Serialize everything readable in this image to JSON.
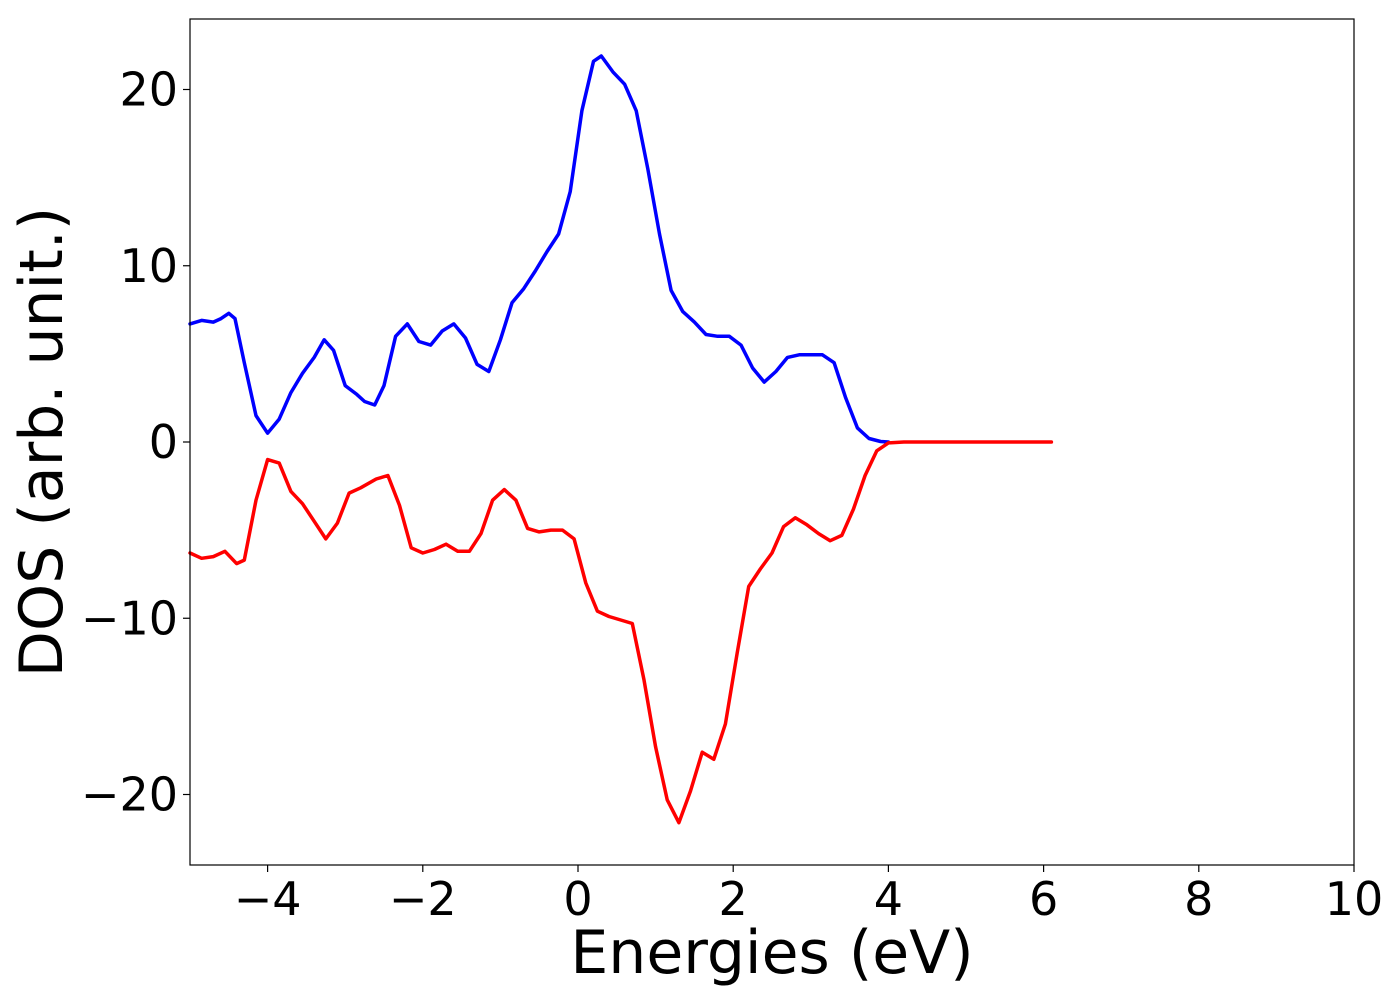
{
  "chart_data": {
    "type": "line",
    "title": "",
    "xlabel": "Energies (eV)",
    "ylabel": "DOS (arb. unit.)",
    "xlim": [
      -5,
      10
    ],
    "ylim": [
      -24,
      24
    ],
    "x_ticks": [
      -4,
      -2,
      0,
      2,
      4,
      6,
      8,
      10
    ],
    "x_tick_labels": [
      "−4",
      "−2",
      "0",
      "2",
      "4",
      "6",
      "8",
      "10"
    ],
    "y_ticks": [
      -20,
      -10,
      0,
      10,
      20
    ],
    "y_tick_labels": [
      "−20",
      "−10",
      "0",
      "10",
      "20"
    ],
    "grid": false,
    "legend": "none",
    "series": [
      {
        "color": "#0000ff",
        "points": [
          [
            -5.0,
            6.7
          ],
          [
            -4.85,
            6.9
          ],
          [
            -4.7,
            6.8
          ],
          [
            -4.6,
            7.0
          ],
          [
            -4.5,
            7.3
          ],
          [
            -4.42,
            7.0
          ],
          [
            -4.3,
            4.5
          ],
          [
            -4.15,
            1.5
          ],
          [
            -4.0,
            0.5
          ],
          [
            -3.85,
            1.3
          ],
          [
            -3.7,
            2.8
          ],
          [
            -3.55,
            3.9
          ],
          [
            -3.4,
            4.8
          ],
          [
            -3.27,
            5.8
          ],
          [
            -3.15,
            5.2
          ],
          [
            -3.0,
            3.2
          ],
          [
            -2.85,
            2.7
          ],
          [
            -2.75,
            2.3
          ],
          [
            -2.62,
            2.1
          ],
          [
            -2.5,
            3.2
          ],
          [
            -2.35,
            6.0
          ],
          [
            -2.2,
            6.7
          ],
          [
            -2.05,
            5.7
          ],
          [
            -1.9,
            5.5
          ],
          [
            -1.75,
            6.3
          ],
          [
            -1.6,
            6.7
          ],
          [
            -1.45,
            5.9
          ],
          [
            -1.3,
            4.4
          ],
          [
            -1.15,
            4.0
          ],
          [
            -1.0,
            5.8
          ],
          [
            -0.85,
            7.9
          ],
          [
            -0.7,
            8.7
          ],
          [
            -0.55,
            9.7
          ],
          [
            -0.4,
            10.8
          ],
          [
            -0.25,
            11.8
          ],
          [
            -0.1,
            14.2
          ],
          [
            0.05,
            18.8
          ],
          [
            0.2,
            21.6
          ],
          [
            0.3,
            21.9
          ],
          [
            0.45,
            21.0
          ],
          [
            0.6,
            20.3
          ],
          [
            0.75,
            18.8
          ],
          [
            0.9,
            15.5
          ],
          [
            1.05,
            11.8
          ],
          [
            1.2,
            8.6
          ],
          [
            1.35,
            7.4
          ],
          [
            1.5,
            6.8
          ],
          [
            1.65,
            6.1
          ],
          [
            1.8,
            6.0
          ],
          [
            1.95,
            6.0
          ],
          [
            2.1,
            5.5
          ],
          [
            2.25,
            4.2
          ],
          [
            2.4,
            3.4
          ],
          [
            2.55,
            4.0
          ],
          [
            2.7,
            4.8
          ],
          [
            2.85,
            4.95
          ],
          [
            3.0,
            4.95
          ],
          [
            3.15,
            4.95
          ],
          [
            3.3,
            4.5
          ],
          [
            3.45,
            2.5
          ],
          [
            3.6,
            0.8
          ],
          [
            3.75,
            0.2
          ],
          [
            3.9,
            0.03
          ],
          [
            4.0,
            0.0
          ]
        ]
      },
      {
        "color": "#ff0000",
        "points": [
          [
            -5.0,
            -6.3
          ],
          [
            -4.85,
            -6.6
          ],
          [
            -4.7,
            -6.5
          ],
          [
            -4.55,
            -6.2
          ],
          [
            -4.4,
            -6.9
          ],
          [
            -4.3,
            -6.7
          ],
          [
            -4.15,
            -3.3
          ],
          [
            -4.0,
            -1.0
          ],
          [
            -3.85,
            -1.2
          ],
          [
            -3.7,
            -2.8
          ],
          [
            -3.55,
            -3.5
          ],
          [
            -3.4,
            -4.5
          ],
          [
            -3.25,
            -5.5
          ],
          [
            -3.1,
            -4.6
          ],
          [
            -2.95,
            -2.9
          ],
          [
            -2.8,
            -2.6
          ],
          [
            -2.6,
            -2.1
          ],
          [
            -2.45,
            -1.9
          ],
          [
            -2.3,
            -3.6
          ],
          [
            -2.15,
            -6.0
          ],
          [
            -2.0,
            -6.3
          ],
          [
            -1.85,
            -6.1
          ],
          [
            -1.7,
            -5.8
          ],
          [
            -1.55,
            -6.2
          ],
          [
            -1.4,
            -6.2
          ],
          [
            -1.25,
            -5.2
          ],
          [
            -1.1,
            -3.3
          ],
          [
            -0.95,
            -2.7
          ],
          [
            -0.8,
            -3.3
          ],
          [
            -0.65,
            -4.9
          ],
          [
            -0.5,
            -5.1
          ],
          [
            -0.35,
            -5.0
          ],
          [
            -0.2,
            -5.0
          ],
          [
            -0.05,
            -5.5
          ],
          [
            0.1,
            -8.0
          ],
          [
            0.25,
            -9.6
          ],
          [
            0.4,
            -9.9
          ],
          [
            0.55,
            -10.1
          ],
          [
            0.7,
            -10.3
          ],
          [
            0.85,
            -13.5
          ],
          [
            1.0,
            -17.3
          ],
          [
            1.15,
            -20.3
          ],
          [
            1.3,
            -21.6
          ],
          [
            1.45,
            -19.8
          ],
          [
            1.6,
            -17.6
          ],
          [
            1.75,
            -18.0
          ],
          [
            1.9,
            -16.0
          ],
          [
            2.05,
            -12.0
          ],
          [
            2.2,
            -8.2
          ],
          [
            2.35,
            -7.2
          ],
          [
            2.5,
            -6.3
          ],
          [
            2.65,
            -4.8
          ],
          [
            2.8,
            -4.3
          ],
          [
            2.95,
            -4.7
          ],
          [
            3.1,
            -5.2
          ],
          [
            3.25,
            -5.6
          ],
          [
            3.4,
            -5.3
          ],
          [
            3.55,
            -3.8
          ],
          [
            3.7,
            -1.9
          ],
          [
            3.85,
            -0.5
          ],
          [
            4.0,
            -0.05
          ],
          [
            4.2,
            0.0
          ],
          [
            6.1,
            0.0
          ]
        ]
      }
    ]
  }
}
